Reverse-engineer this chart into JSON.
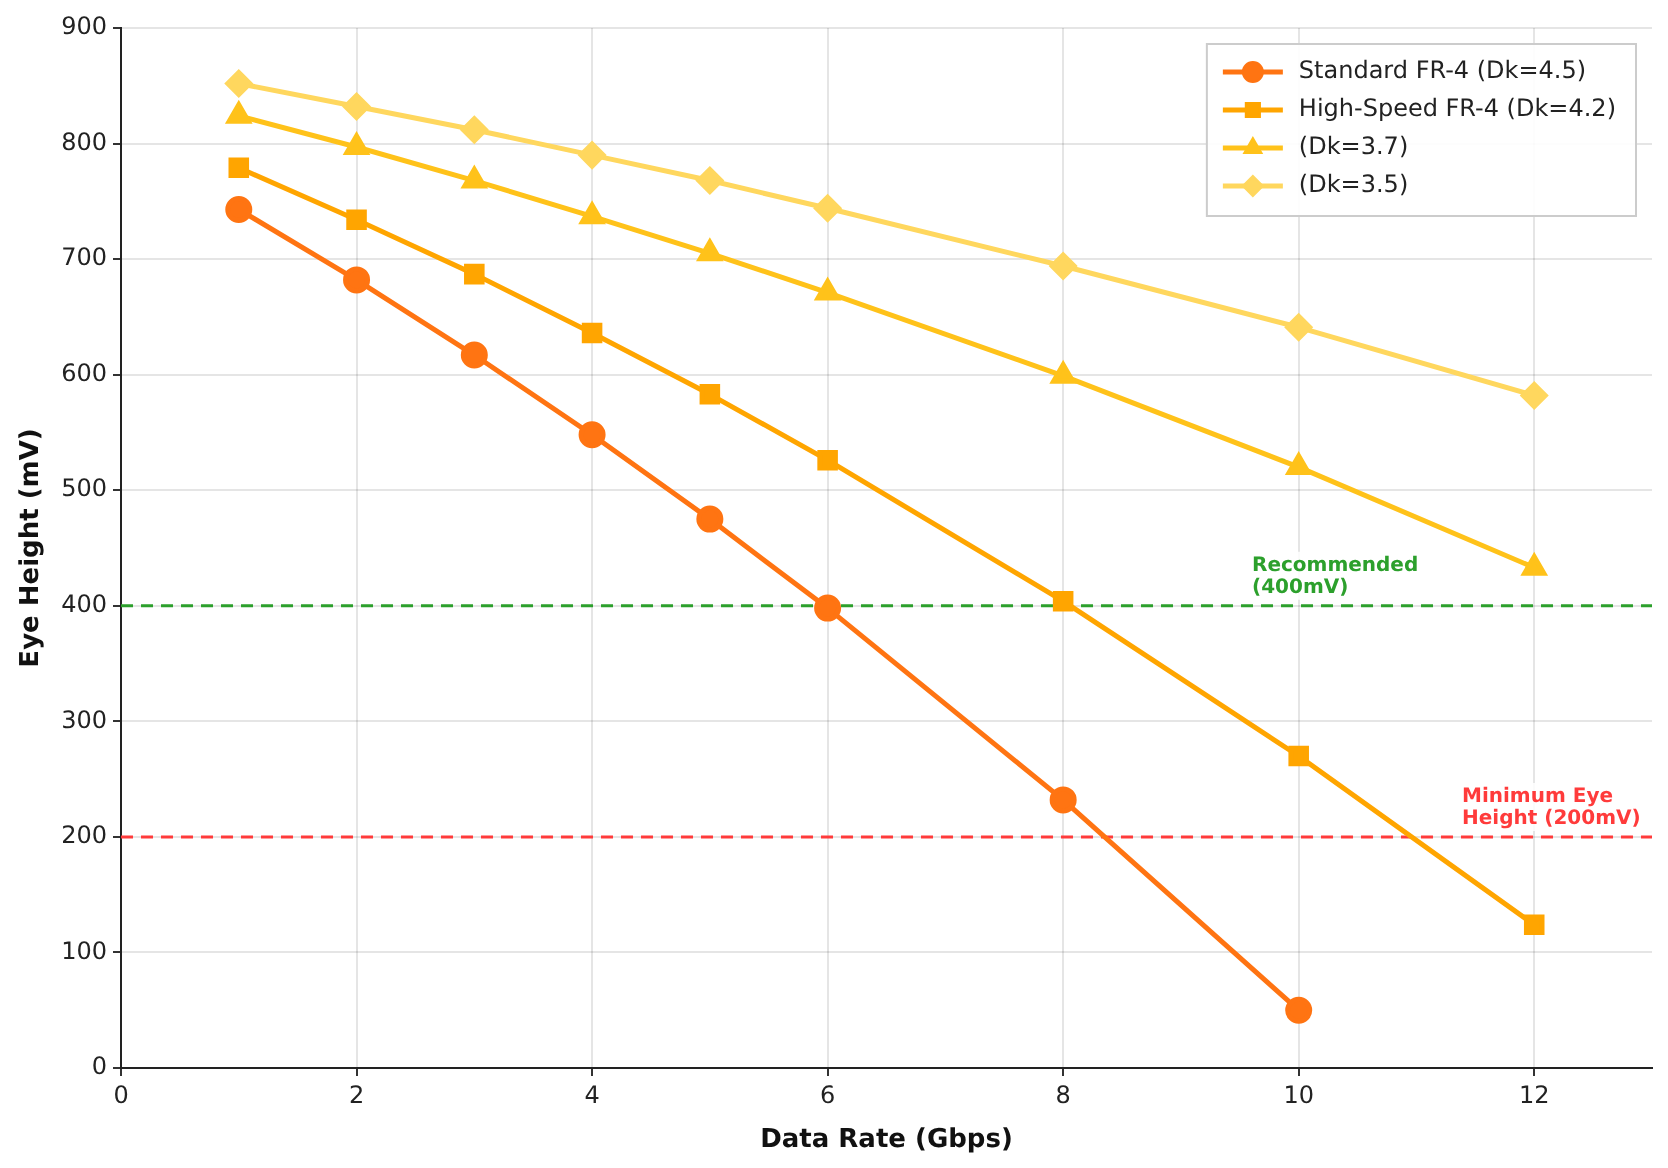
{
  "chart_data": {
    "type": "line",
    "xlabel": "Data Rate (Gbps)",
    "ylabel": "Eye Height (mV)",
    "x": [
      1,
      2,
      3,
      4,
      5,
      6,
      8,
      10,
      12
    ],
    "xlim": [
      0,
      13
    ],
    "xticks": [
      0,
      2,
      4,
      6,
      8,
      10,
      12
    ],
    "ylim": [
      0,
      900
    ],
    "yticks": [
      0,
      100,
      200,
      300,
      400,
      500,
      600,
      700,
      800,
      900
    ],
    "grid": true,
    "legend": "top right",
    "line_style": "solid",
    "series": [
      {
        "name": "Standard FR-4 (Dk=4.5)",
        "color": "#ff7412",
        "marker": "circle",
        "values": [
          743,
          682,
          617,
          548,
          475,
          398,
          232,
          50,
          null
        ]
      },
      {
        "name": "High-Speed FR-4 (Dk=4.2)",
        "color": "#ffa500",
        "marker": "square",
        "values": [
          779,
          734,
          687,
          636,
          583,
          526,
          404,
          270,
          124
        ]
      },
      {
        "name": "(Dk=3.7)",
        "color": "#ffc21a",
        "marker": "triangle",
        "values": [
          824,
          797,
          768,
          737,
          705,
          671,
          599,
          520,
          433
        ]
      },
      {
        "name": "(Dk=3.5)",
        "color": "#ffd75e",
        "marker": "diamond",
        "values": [
          852,
          832,
          812,
          790,
          768,
          744,
          694,
          641,
          582
        ]
      }
    ],
    "ref_lines": [
      {
        "axis": "y",
        "value": 400,
        "label": "Recommended\n(400mV)",
        "color": "#2ca02c",
        "line_style": "dashed"
      },
      {
        "axis": "y",
        "value": 200,
        "label": "Minimum Eye\nHeight (200mV)",
        "color": "#ff3b3b",
        "line_style": "dashed"
      }
    ]
  }
}
